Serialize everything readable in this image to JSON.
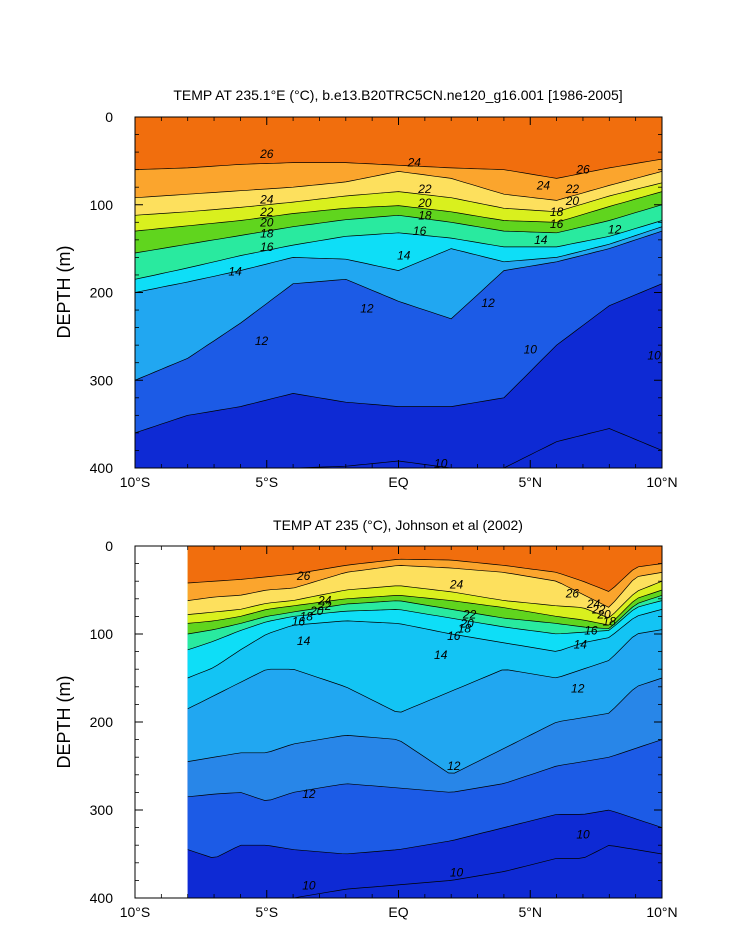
{
  "chart_data": [
    {
      "type": "contour",
      "title": "TEMP AT 235.1°E (°C), b.e13.B20TRC5CN.ne120_g16.001 [1986-2005]",
      "xlabel": "",
      "ylabel": "DEPTH (m)",
      "x_ticks": [
        "10°S",
        "5°S",
        "EQ",
        "5°N",
        "10°N"
      ],
      "y_ticks": [
        "0",
        "100",
        "200",
        "300",
        "400"
      ],
      "xlim": [
        -10,
        10
      ],
      "ylim": [
        400,
        0
      ],
      "contour_interval": 1,
      "x": [
        -10,
        -8,
        -6,
        -4,
        -2,
        0,
        2,
        4,
        6,
        8,
        10
      ],
      "isotherm_depths": [
        {
          "level": 26,
          "depth": [
            60,
            58,
            54,
            52,
            52,
            55,
            58,
            60,
            70,
            58,
            48
          ]
        },
        {
          "level": 24,
          "depth": [
            92,
            88,
            84,
            80,
            74,
            62,
            70,
            88,
            95,
            78,
            62
          ]
        },
        {
          "level": 22,
          "depth": [
            112,
            108,
            103,
            97,
            90,
            85,
            92,
            104,
            108,
            90,
            75
          ]
        },
        {
          "level": 20,
          "depth": [
            130,
            124,
            118,
            110,
            104,
            101,
            108,
            118,
            120,
            102,
            85
          ]
        },
        {
          "level": 18,
          "depth": [
            155,
            145,
            135,
            125,
            117,
            112,
            120,
            130,
            132,
            118,
            100
          ]
        },
        {
          "level": 16,
          "depth": [
            185,
            172,
            158,
            146,
            136,
            132,
            138,
            148,
            148,
            136,
            118
          ]
        },
        {
          "level": 14,
          "depth": [
            200,
            188,
            175,
            160,
            162,
            175,
            150,
            165,
            160,
            145,
            125
          ]
        },
        {
          "level": 12,
          "depth": [
            300,
            275,
            235,
            190,
            185,
            210,
            230,
            175,
            165,
            150,
            130
          ]
        },
        {
          "level": 10,
          "depth": [
            360,
            340,
            330,
            315,
            325,
            330,
            330,
            320,
            260,
            215,
            190
          ]
        },
        {
          "level": 9,
          "depth": [
            400,
            400,
            400,
            400,
            398,
            392,
            400,
            400,
            370,
            355,
            380
          ]
        }
      ],
      "surface_max_labels": [],
      "contour_labels": [
        {
          "text": "26",
          "x": -5.0,
          "depth": 42
        },
        {
          "text": "24",
          "x": 0.6,
          "depth": 52
        },
        {
          "text": "26",
          "x": 7.0,
          "depth": 60
        },
        {
          "text": "24",
          "x": 5.5,
          "depth": 78
        },
        {
          "text": "22",
          "x": 6.6,
          "depth": 82
        },
        {
          "text": "24",
          "x": -5.0,
          "depth": 94
        },
        {
          "text": "22",
          "x": 1.0,
          "depth": 82
        },
        {
          "text": "20",
          "x": 6.6,
          "depth": 96
        },
        {
          "text": "22",
          "x": -5.0,
          "depth": 108
        },
        {
          "text": "20",
          "x": 1.0,
          "depth": 98
        },
        {
          "text": "18",
          "x": 6.0,
          "depth": 108
        },
        {
          "text": "20",
          "x": -5.0,
          "depth": 120
        },
        {
          "text": "18",
          "x": 1.0,
          "depth": 112
        },
        {
          "text": "16",
          "x": 6.0,
          "depth": 122
        },
        {
          "text": "18",
          "x": -5.0,
          "depth": 133
        },
        {
          "text": "16",
          "x": 0.8,
          "depth": 130
        },
        {
          "text": "14",
          "x": 5.4,
          "depth": 140
        },
        {
          "text": "12",
          "x": 8.2,
          "depth": 128
        },
        {
          "text": "16",
          "x": -5.0,
          "depth": 148
        },
        {
          "text": "14",
          "x": 0.2,
          "depth": 158
        },
        {
          "text": "14",
          "x": -6.2,
          "depth": 176
        },
        {
          "text": "12",
          "x": -1.2,
          "depth": 218
        },
        {
          "text": "12",
          "x": 3.4,
          "depth": 212
        },
        {
          "text": "12",
          "x": -5.2,
          "depth": 255
        },
        {
          "text": "10",
          "x": 5.0,
          "depth": 265
        },
        {
          "text": "10",
          "x": 9.7,
          "depth": 272
        },
        {
          "text": "10",
          "x": 1.6,
          "depth": 395
        }
      ]
    },
    {
      "type": "contour",
      "title": "TEMP AT 235 (°C), Johnson et al (2002)",
      "xlabel": "",
      "ylabel": "DEPTH (m)",
      "x_ticks": [
        "10°S",
        "5°S",
        "EQ",
        "5°N",
        "10°N"
      ],
      "y_ticks": [
        "0",
        "100",
        "200",
        "300",
        "400"
      ],
      "xlim": [
        -10,
        10
      ],
      "ylim": [
        400,
        0
      ],
      "data_xlim": [
        -8,
        10
      ],
      "contour_interval": 1,
      "x": [
        -8,
        -7,
        -6,
        -5,
        -4,
        -2,
        0,
        2,
        4,
        6,
        7,
        8,
        9,
        10
      ],
      "isotherm_depths": [
        {
          "level": 26,
          "depth": [
            42,
            40,
            38,
            35,
            32,
            22,
            15,
            16,
            22,
            30,
            40,
            52,
            24,
            20
          ]
        },
        {
          "level": 24,
          "depth": [
            62,
            58,
            56,
            50,
            48,
            30,
            22,
            25,
            30,
            40,
            55,
            70,
            35,
            30
          ]
        },
        {
          "level": 22,
          "depth": [
            78,
            75,
            72,
            65,
            62,
            50,
            45,
            52,
            62,
            68,
            70,
            82,
            52,
            40
          ]
        },
        {
          "level": 20,
          "depth": [
            88,
            85,
            80,
            72,
            68,
            60,
            56,
            62,
            70,
            80,
            84,
            90,
            60,
            50
          ]
        },
        {
          "level": 18,
          "depth": [
            100,
            95,
            88,
            80,
            75,
            66,
            62,
            72,
            82,
            88,
            92,
            94,
            66,
            56
          ]
        },
        {
          "level": 16,
          "depth": [
            118,
            108,
            96,
            86,
            80,
            74,
            72,
            82,
            92,
            100,
            98,
            96,
            70,
            62
          ]
        },
        {
          "level": 14,
          "depth": [
            150,
            138,
            118,
            100,
            90,
            85,
            88,
            100,
            110,
            120,
            110,
            104,
            80,
            72
          ]
        },
        {
          "level": 13,
          "depth": [
            185,
            170,
            155,
            140,
            140,
            160,
            190,
            165,
            140,
            150,
            140,
            130,
            100,
            95
          ]
        },
        {
          "level": 12,
          "depth": [
            245,
            240,
            235,
            235,
            225,
            215,
            220,
            260,
            230,
            200,
            195,
            190,
            160,
            150
          ]
        },
        {
          "level": 11,
          "depth": [
            285,
            282,
            280,
            290,
            280,
            270,
            275,
            280,
            270,
            250,
            245,
            240,
            230,
            220
          ]
        },
        {
          "level": 10,
          "depth": [
            345,
            355,
            340,
            340,
            345,
            350,
            345,
            335,
            320,
            305,
            305,
            300,
            310,
            320
          ]
        },
        {
          "level": 9,
          "depth": [
            400,
            400,
            400,
            400,
            400,
            390,
            385,
            380,
            370,
            355,
            355,
            340,
            345,
            350
          ]
        }
      ],
      "surface_max_labels": [],
      "contour_labels": [
        {
          "text": "26",
          "x": -3.6,
          "depth": 34
        },
        {
          "text": "24",
          "x": 2.2,
          "depth": 44
        },
        {
          "text": "26",
          "x": 6.6,
          "depth": 54
        },
        {
          "text": "24",
          "x": -2.8,
          "depth": 62
        },
        {
          "text": "22",
          "x": -2.8,
          "depth": 68
        },
        {
          "text": "20",
          "x": -3.1,
          "depth": 74
        },
        {
          "text": "18",
          "x": -3.5,
          "depth": 80
        },
        {
          "text": "16",
          "x": -3.8,
          "depth": 86
        },
        {
          "text": "22",
          "x": 2.7,
          "depth": 78
        },
        {
          "text": "20",
          "x": 2.6,
          "depth": 88
        },
        {
          "text": "18",
          "x": 2.5,
          "depth": 94
        },
        {
          "text": "16",
          "x": 2.1,
          "depth": 102
        },
        {
          "text": "24",
          "x": 7.4,
          "depth": 66
        },
        {
          "text": "22",
          "x": 7.6,
          "depth": 72
        },
        {
          "text": "20",
          "x": 7.8,
          "depth": 78
        },
        {
          "text": "18",
          "x": 8.0,
          "depth": 86
        },
        {
          "text": "16",
          "x": 7.3,
          "depth": 96
        },
        {
          "text": "14",
          "x": -3.6,
          "depth": 108
        },
        {
          "text": "14",
          "x": 1.6,
          "depth": 124
        },
        {
          "text": "14",
          "x": 6.9,
          "depth": 112
        },
        {
          "text": "12",
          "x": 6.8,
          "depth": 162
        },
        {
          "text": "12",
          "x": 2.1,
          "depth": 250
        },
        {
          "text": "12",
          "x": -3.4,
          "depth": 282
        },
        {
          "text": "10",
          "x": 7.0,
          "depth": 328
        },
        {
          "text": "10",
          "x": 2.2,
          "depth": 371
        },
        {
          "text": "10",
          "x": -3.4,
          "depth": 386
        }
      ]
    }
  ],
  "colors": {
    "colormap": [
      "#0e2ad4",
      "#1c5be6",
      "#2886e8",
      "#21a7f1",
      "#13c4f4",
      "#0edef7",
      "#18ebd9",
      "#29ea9f",
      "#3ee04f",
      "#60d51e",
      "#9fe11d",
      "#d9f01e",
      "#fefe39",
      "#fde05d",
      "#fcc042",
      "#fba52d",
      "#f88a1e",
      "#f16e0d",
      "#ea4c04",
      "#e12800"
    ],
    "colormap_base": 9,
    "line": "#000000",
    "missing": "#ffffff"
  }
}
